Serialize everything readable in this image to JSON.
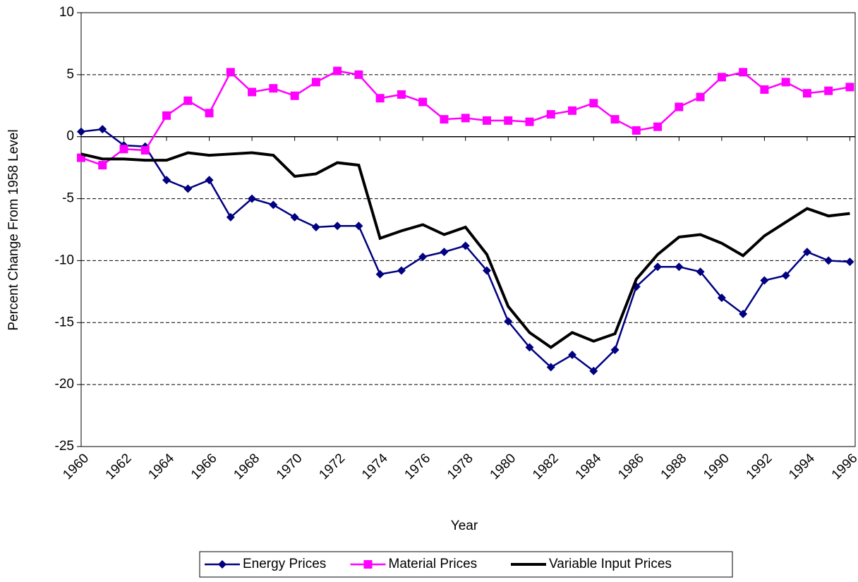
{
  "chart_data": {
    "type": "line",
    "x_label": "Year",
    "y_label": "Percent Change From 1958 Level",
    "x": [
      1960,
      1961,
      1962,
      1963,
      1964,
      1965,
      1966,
      1967,
      1968,
      1969,
      1970,
      1971,
      1972,
      1973,
      1974,
      1975,
      1976,
      1977,
      1978,
      1979,
      1980,
      1981,
      1982,
      1983,
      1984,
      1985,
      1986,
      1987,
      1988,
      1989,
      1990,
      1991,
      1992,
      1993,
      1994,
      1995,
      1996
    ],
    "xlim": [
      1960,
      1996.25
    ],
    "xticks": [
      1960,
      1962,
      1964,
      1966,
      1968,
      1970,
      1972,
      1974,
      1976,
      1978,
      1980,
      1982,
      1984,
      1986,
      1988,
      1990,
      1992,
      1994,
      1996
    ],
    "ylim": [
      -25,
      10
    ],
    "yticks": [
      -25,
      -20,
      -15,
      -10,
      -5,
      0,
      5,
      10
    ],
    "grid": true,
    "legend": "bottom",
    "series": [
      {
        "name": "Energy Prices",
        "color": "#000080",
        "marker": "diamond",
        "values": [
          0.4,
          0.6,
          -0.7,
          -0.8,
          -3.5,
          -4.2,
          -3.5,
          -6.5,
          -5.0,
          -5.5,
          -6.5,
          -7.3,
          -7.2,
          -7.2,
          -11.1,
          -10.8,
          -9.7,
          -9.3,
          -8.8,
          -10.8,
          -14.9,
          -17.0,
          -18.6,
          -17.6,
          -18.9,
          -17.2,
          -12.1,
          -10.5,
          -10.5,
          -10.9,
          -13.0,
          -14.3,
          -11.6,
          -11.2,
          -9.3,
          -10.0,
          -10.1
        ]
      },
      {
        "name": "Material Prices",
        "color": "#ff00ff",
        "marker": "square",
        "values": [
          -1.7,
          -2.3,
          -1.0,
          -1.1,
          1.7,
          2.9,
          1.9,
          5.2,
          3.6,
          3.9,
          3.3,
          4.4,
          5.3,
          5.0,
          3.1,
          3.4,
          2.8,
          1.4,
          1.5,
          1.3,
          1.3,
          1.2,
          1.8,
          2.1,
          2.7,
          1.4,
          0.5,
          0.8,
          2.4,
          3.2,
          4.8,
          5.2,
          3.8,
          4.4,
          3.5,
          3.7,
          4.0
        ]
      },
      {
        "name": "Variable Input Prices",
        "color": "#000000",
        "values": [
          -1.4,
          -1.8,
          -1.8,
          -1.9,
          -1.9,
          -1.3,
          -1.5,
          -1.4,
          -1.3,
          -1.5,
          -3.2,
          -3.0,
          -2.1,
          -2.3,
          -8.2,
          -7.6,
          -7.1,
          -7.9,
          -7.3,
          -9.5,
          -13.7,
          -15.8,
          -17.0,
          -15.8,
          -16.5,
          -15.9,
          -11.5,
          -9.5,
          -8.1,
          -7.9,
          -8.6,
          -9.6,
          -8.0,
          -6.9,
          -5.8,
          -6.4,
          -6.2
        ]
      }
    ]
  }
}
